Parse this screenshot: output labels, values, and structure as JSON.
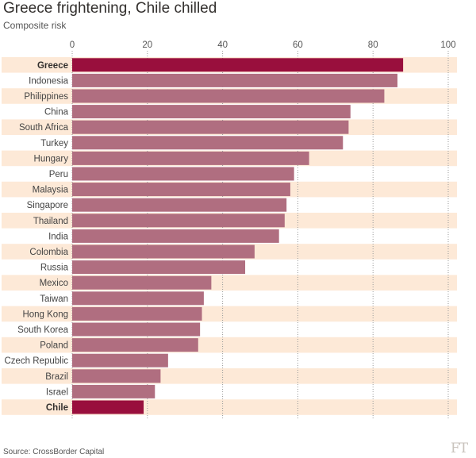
{
  "title": "Greece frightening, Chile chilled",
  "subtitle": "Composite risk",
  "source": "Source: CrossBorder Capital",
  "logo": "FT",
  "colors": {
    "bar": "#b06e80",
    "highlight": "#990f3d",
    "band": "#fde9d7",
    "grid": "#999999"
  },
  "chart_data": {
    "type": "bar",
    "orientation": "horizontal",
    "title": "Greece frightening, Chile chilled",
    "subtitle": "Composite risk",
    "xlim": [
      0,
      100
    ],
    "xticks": [
      0,
      20,
      40,
      60,
      80,
      100
    ],
    "categories": [
      "Greece",
      "Indonesia",
      "Philippines",
      "China",
      "South Africa",
      "Turkey",
      "Hungary",
      "Peru",
      "Malaysia",
      "Singapore",
      "Thailand",
      "India",
      "Colombia",
      "Russia",
      "Mexico",
      "Taiwan",
      "Hong Kong",
      "South Korea",
      "Poland",
      "Czech Republic",
      "Brazil",
      "Israel",
      "Chile"
    ],
    "values": [
      88,
      86.5,
      83,
      74,
      73.5,
      72,
      63,
      59,
      58,
      57,
      56.5,
      55,
      48.5,
      46,
      37,
      35,
      34.5,
      34,
      33.5,
      25.5,
      23.5,
      22,
      19
    ],
    "highlighted": [
      "Greece",
      "Chile"
    ],
    "grid": true
  }
}
